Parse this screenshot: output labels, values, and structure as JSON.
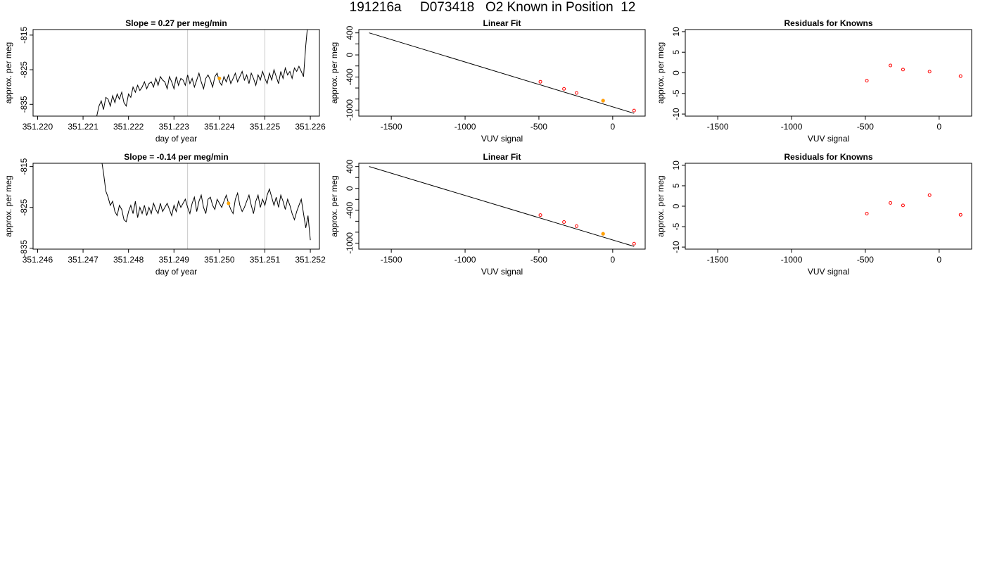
{
  "title": "191216a     D073418   O2 Known in Position  12",
  "colors": {
    "trace": "#000000",
    "marker_vline": "#c8c8c8",
    "highlight": "#ffa500",
    "known_points": "#ff0000",
    "frame": "#000000"
  },
  "chart_data": [
    {
      "type": "line",
      "title": "Slope =  0.27  per meg/min",
      "xlabel": "day of year",
      "ylabel": "approx. per meg",
      "xlim": [
        351.2199,
        351.2262
      ],
      "ylim": [
        -838.4,
        -813.4
      ],
      "xticks": [
        351.22,
        351.221,
        351.222,
        351.223,
        351.224,
        351.225,
        351.226
      ],
      "xtick_labels": [
        "351.220",
        "351.221",
        "351.222",
        "351.223",
        "351.224",
        "351.225",
        "351.226"
      ],
      "yticks": [
        -815,
        -825,
        -835
      ],
      "ytick_labels": [
        "-815",
        "-825",
        "-835"
      ],
      "vlines": [
        351.2233,
        351.225
      ],
      "series": [
        {
          "x": [
            351.2213,
            351.22135,
            351.2214,
            351.22145,
            351.2215,
            351.22155,
            351.2216,
            351.22165,
            351.2217,
            351.22175,
            351.2218,
            351.22185,
            351.2219,
            351.22195,
            351.222,
            351.22205,
            351.2221,
            351.22215,
            351.2222,
            351.22225,
            351.2223,
            351.22235,
            351.2224,
            351.22245,
            351.2225,
            351.22255,
            351.2226,
            351.22265,
            351.2227,
            351.22275,
            351.2228,
            351.22285,
            351.2229,
            351.22295,
            351.223,
            351.22305,
            351.2231,
            351.22315,
            351.2232,
            351.22325,
            351.2233,
            351.22335,
            351.2234,
            351.22345,
            351.2235,
            351.22355,
            351.2236,
            351.22365,
            351.2237,
            351.22375,
            351.2238,
            351.22385,
            351.2239,
            351.22395,
            351.224,
            351.22405,
            351.2241,
            351.22415,
            351.2242,
            351.22425,
            351.2243,
            351.22435,
            351.2244,
            351.22445,
            351.2245,
            351.22455,
            351.2246,
            351.22465,
            351.2247,
            351.22475,
            351.2248,
            351.22485,
            351.2249,
            351.22495,
            351.225,
            351.22505,
            351.2251,
            351.22515,
            351.2252,
            351.22525,
            351.2253,
            351.22535,
            351.2254,
            351.22545,
            351.2255,
            351.22555,
            351.2256,
            351.22565,
            351.2257,
            351.22575,
            351.2258,
            351.22585,
            351.2259,
            351.22595
          ],
          "y": [
            -838.5,
            -835.5,
            -834.0,
            -836.5,
            -833.0,
            -833.5,
            -835.5,
            -832.5,
            -834.5,
            -832.0,
            -833.5,
            -831.5,
            -834.5,
            -835.5,
            -832.0,
            -833.0,
            -830.0,
            -831.5,
            -829.5,
            -831.0,
            -830.0,
            -828.5,
            -830.5,
            -829.0,
            -828.5,
            -830.0,
            -827.5,
            -829.5,
            -827.0,
            -828.0,
            -828.5,
            -830.5,
            -827.0,
            -828.5,
            -830.5,
            -827.0,
            -829.5,
            -827.5,
            -828.0,
            -829.5,
            -826.5,
            -829.0,
            -827.5,
            -830.0,
            -828.0,
            -826.0,
            -828.5,
            -830.5,
            -827.5,
            -826.5,
            -828.0,
            -830.0,
            -827.0,
            -826.0,
            -828.5,
            -829.5,
            -827.0,
            -828.5,
            -826.5,
            -829.0,
            -827.5,
            -826.0,
            -828.5,
            -827.0,
            -825.5,
            -828.0,
            -826.5,
            -829.0,
            -826.0,
            -827.5,
            -829.5,
            -826.5,
            -828.0,
            -825.5,
            -827.5,
            -829.0,
            -826.0,
            -828.0,
            -825.0,
            -827.0,
            -829.0,
            -825.5,
            -827.5,
            -824.5,
            -826.5,
            -825.5,
            -827.5,
            -824.5,
            -825.5,
            -824.0,
            -825.5,
            -827.0,
            -818.0,
            -811.0
          ]
        }
      ],
      "highlight": {
        "x": 351.224,
        "y": -827.5
      }
    },
    {
      "type": "scatter",
      "title": "Linear Fit",
      "xlabel": "VUV signal",
      "ylabel": "approx. per meg",
      "xlim": [
        -1720,
        220
      ],
      "ylim": [
        -1110,
        460
      ],
      "xticks": [
        -1500,
        -1000,
        -500,
        0
      ],
      "xtick_labels": [
        "-1500",
        "-1000",
        "-500",
        "0"
      ],
      "yticks": [
        400,
        0,
        -400,
        -1000
      ],
      "ytick_labels": [
        "400",
        "0",
        "-400",
        "-1000"
      ],
      "yticks_minor": [
        200,
        -200,
        -600,
        -800
      ],
      "fit_line": {
        "x": [
          -1650,
          145
        ],
        "y": [
          400,
          -1060
        ]
      },
      "points": {
        "x": [
          -490,
          -330,
          -245,
          -65,
          145
        ],
        "y": [
          -487,
          -615,
          -690,
          -830,
          -1010
        ]
      },
      "highlight": {
        "x": -65,
        "y": -830
      }
    },
    {
      "type": "scatter",
      "title": "Residuals for Knowns",
      "xlabel": "VUV signal",
      "ylabel": "approx. per meg",
      "xlim": [
        -1720,
        220
      ],
      "ylim": [
        -10.5,
        10.5
      ],
      "xticks": [
        -1500,
        -1000,
        -500,
        0
      ],
      "xtick_labels": [
        "-1500",
        "-1000",
        "-500",
        "0"
      ],
      "yticks": [
        10,
        5,
        0,
        -5,
        -10
      ],
      "ytick_labels": [
        "10",
        "5",
        "0",
        "-5",
        "-10"
      ],
      "points": {
        "x": [
          -490,
          -330,
          -245,
          -65,
          145
        ],
        "y": [
          -1.9,
          1.8,
          0.8,
          0.3,
          -0.8
        ]
      }
    },
    {
      "type": "line",
      "title": "Slope =  -0.14  per meg/min",
      "xlabel": "day of year",
      "ylabel": "approx. per meg",
      "xlim": [
        351.2459,
        351.2522
      ],
      "ylim": [
        -835.2,
        -814.2
      ],
      "xticks": [
        351.246,
        351.247,
        351.248,
        351.249,
        351.25,
        351.251,
        351.252
      ],
      "xtick_labels": [
        "351.246",
        "351.247",
        "351.248",
        "351.249",
        "351.250",
        "351.251",
        "351.252"
      ],
      "yticks": [
        -815,
        -825,
        -835
      ],
      "ytick_labels": [
        "-815",
        "-825",
        "-835"
      ],
      "vlines": [
        351.2493,
        351.251
      ],
      "series": [
        {
          "x": [
            351.2474,
            351.24745,
            351.2475,
            351.24755,
            351.2476,
            351.24765,
            351.2477,
            351.24775,
            351.2478,
            351.24785,
            351.2479,
            351.24795,
            351.248,
            351.24805,
            351.2481,
            351.24815,
            351.2482,
            351.24825,
            351.2483,
            351.24835,
            351.2484,
            351.24845,
            351.2485,
            351.24855,
            351.2486,
            351.24865,
            351.2487,
            351.24875,
            351.2488,
            351.24885,
            351.2489,
            351.24895,
            351.249,
            351.24905,
            351.2491,
            351.24915,
            351.2492,
            351.24925,
            351.2493,
            351.24935,
            351.2494,
            351.24945,
            351.2495,
            351.24955,
            351.2496,
            351.24965,
            351.2497,
            351.24975,
            351.2498,
            351.24985,
            351.2499,
            351.24995,
            351.25,
            351.25005,
            351.2501,
            351.25015,
            351.2502,
            351.25025,
            351.2503,
            351.25035,
            351.2504,
            351.25045,
            351.2505,
            351.25055,
            351.2506,
            351.25065,
            351.2507,
            351.25075,
            351.2508,
            351.25085,
            351.2509,
            351.25095,
            351.251,
            351.25105,
            351.2511,
            351.25115,
            351.2512,
            351.25125,
            351.2513,
            351.25135,
            351.2514,
            351.25145,
            351.2515,
            351.25155,
            351.2516,
            351.25165,
            351.2517,
            351.25175,
            351.2518,
            351.25185,
            351.2519,
            351.25195,
            351.252
          ],
          "y": [
            -813.0,
            -816.5,
            -821.0,
            -822.5,
            -824.5,
            -823.5,
            -826.0,
            -827.0,
            -824.5,
            -825.5,
            -828.0,
            -828.5,
            -826.0,
            -824.5,
            -826.5,
            -823.5,
            -827.5,
            -825.0,
            -826.5,
            -824.5,
            -827.0,
            -825.0,
            -826.5,
            -824.0,
            -825.5,
            -826.5,
            -824.0,
            -826.0,
            -825.0,
            -824.0,
            -825.5,
            -827.0,
            -824.5,
            -826.0,
            -823.5,
            -825.0,
            -824.0,
            -823.0,
            -825.0,
            -826.5,
            -824.0,
            -822.5,
            -826.0,
            -823.5,
            -822.0,
            -825.0,
            -826.5,
            -823.0,
            -822.5,
            -824.5,
            -825.5,
            -823.0,
            -824.0,
            -825.0,
            -823.5,
            -822.0,
            -824.0,
            -825.5,
            -826.5,
            -823.0,
            -821.5,
            -824.5,
            -826.0,
            -825.0,
            -823.5,
            -822.0,
            -824.5,
            -826.5,
            -823.5,
            -822.0,
            -825.0,
            -823.0,
            -824.5,
            -822.0,
            -820.5,
            -822.5,
            -824.5,
            -822.5,
            -825.0,
            -822.0,
            -823.5,
            -825.5,
            -823.0,
            -824.5,
            -826.5,
            -828.0,
            -826.0,
            -824.5,
            -823.0,
            -826.5,
            -830.0,
            -827.0,
            -833.0
          ]
        }
      ],
      "highlight": {
        "x": 351.2502,
        "y": -824.0
      }
    },
    {
      "type": "scatter",
      "title": "Linear Fit",
      "xlabel": "VUV signal",
      "ylabel": "approx. per meg",
      "xlim": [
        -1720,
        220
      ],
      "ylim": [
        -1110,
        460
      ],
      "xticks": [
        -1500,
        -1000,
        -500,
        0
      ],
      "xtick_labels": [
        "-1500",
        "-1000",
        "-500",
        "0"
      ],
      "yticks": [
        400,
        0,
        -400,
        -1000
      ],
      "ytick_labels": [
        "400",
        "0",
        "-400",
        "-1000"
      ],
      "yticks_minor": [
        200,
        -200,
        -600,
        -800
      ],
      "fit_line": {
        "x": [
          -1650,
          145
        ],
        "y": [
          400,
          -1060
        ]
      },
      "points": {
        "x": [
          -490,
          -330,
          -245,
          -65,
          145
        ],
        "y": [
          -487,
          -615,
          -690,
          -830,
          -1010
        ]
      },
      "highlight": {
        "x": -65,
        "y": -830
      }
    },
    {
      "type": "scatter",
      "title": "Residuals for Knowns",
      "xlabel": "VUV signal",
      "ylabel": "approx. per meg",
      "xlim": [
        -1720,
        220
      ],
      "ylim": [
        -10.5,
        10.5
      ],
      "xticks": [
        -1500,
        -1000,
        -500,
        0
      ],
      "xtick_labels": [
        "-1500",
        "-1000",
        "-500",
        "0"
      ],
      "yticks": [
        10,
        5,
        0,
        -5,
        -10
      ],
      "ytick_labels": [
        "10",
        "5",
        "0",
        "-5",
        "-10"
      ],
      "points": {
        "x": [
          -490,
          -330,
          -245,
          -65,
          145
        ],
        "y": [
          -1.8,
          0.8,
          0.2,
          2.7,
          -2.1
        ]
      }
    }
  ]
}
